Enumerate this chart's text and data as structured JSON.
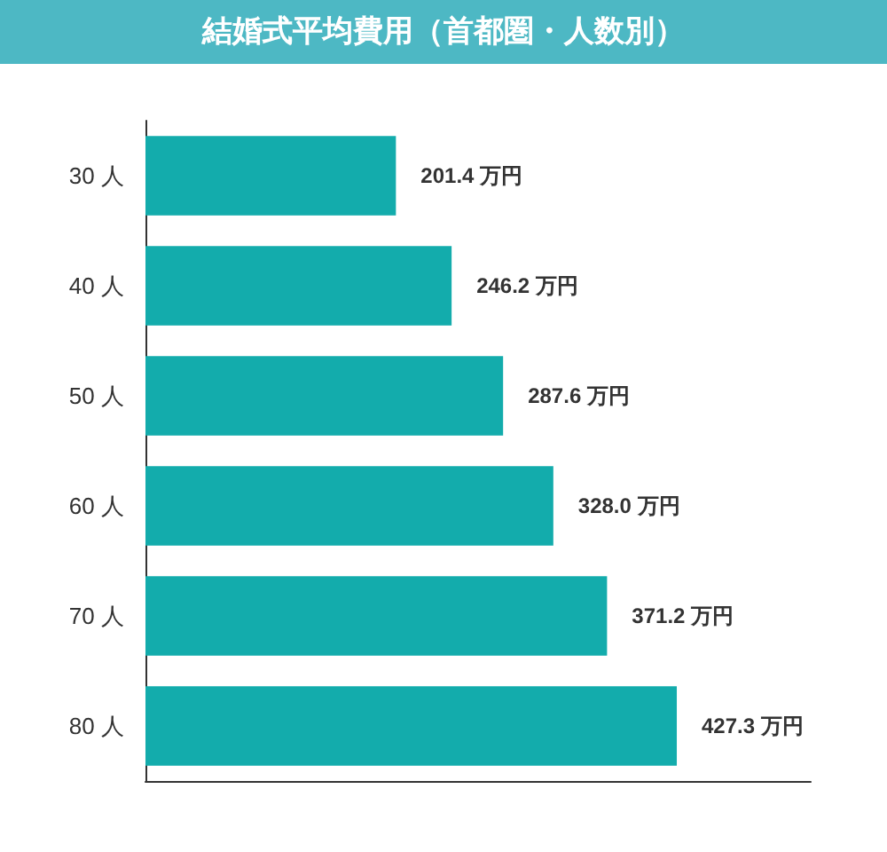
{
  "chart_data": {
    "type": "bar",
    "orientation": "horizontal",
    "title": "結婚式平均費用（首都圏・人数別）",
    "categories": [
      "30 人",
      "40 人",
      "50 人",
      "60 人",
      "70 人",
      "80 人"
    ],
    "values": [
      201.4,
      246.2,
      287.6,
      328.0,
      371.2,
      427.3
    ],
    "value_labels": [
      "201.4 万円",
      "246.2 万円",
      "287.6 万円",
      "328.0 万円",
      "371.2 万円",
      "427.3 万円"
    ],
    "color": "#13acac",
    "xlim": [
      0,
      535
    ],
    "tick_labels": "y"
  }
}
